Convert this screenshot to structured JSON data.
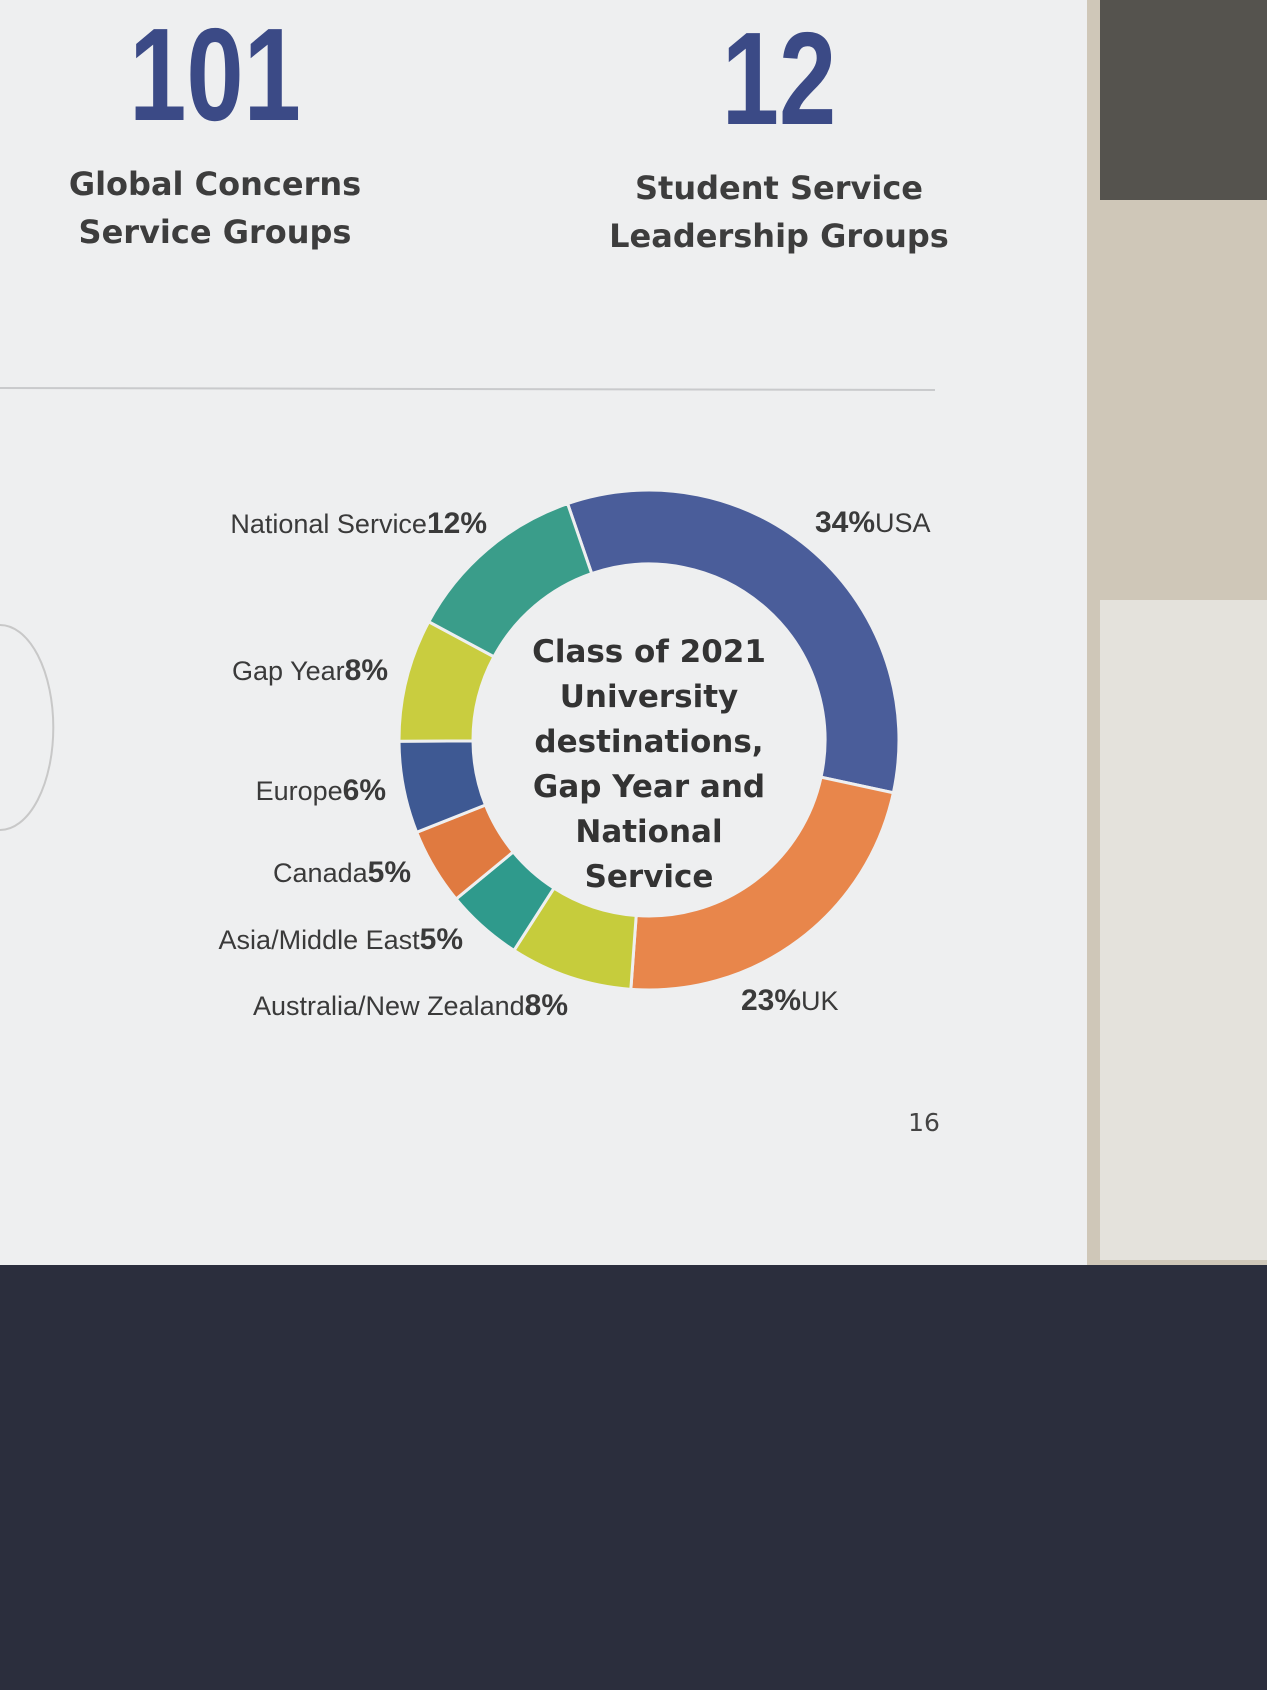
{
  "stats": [
    {
      "value": 101,
      "label": [
        "Global Concerns",
        "Service Groups"
      ]
    },
    {
      "value": 12,
      "label": [
        "Student Service",
        "Leadership Groups"
      ]
    }
  ],
  "chart_data": {
    "type": "donut",
    "title": "Class of 2021 University destinations, Gap Year and National Service",
    "categories": [
      "USA",
      "UK",
      "Australia/New Zealand",
      "Asia/Middle East",
      "Canada",
      "Europe",
      "Gap Year",
      "National Service"
    ],
    "values": [
      34,
      23,
      8,
      5,
      5,
      6,
      8,
      12
    ],
    "value_labels": [
      "34%",
      "23%",
      "8%",
      "5%",
      "5%",
      "6%",
      "8%",
      "12%"
    ],
    "colors": [
      "#4a5d9a",
      "#e8864b",
      "#c6cc3c",
      "#2f9a8c",
      "#e07a40",
      "#3e5993",
      "#c9cd3f",
      "#3a9d8a"
    ]
  },
  "page_number": "16"
}
